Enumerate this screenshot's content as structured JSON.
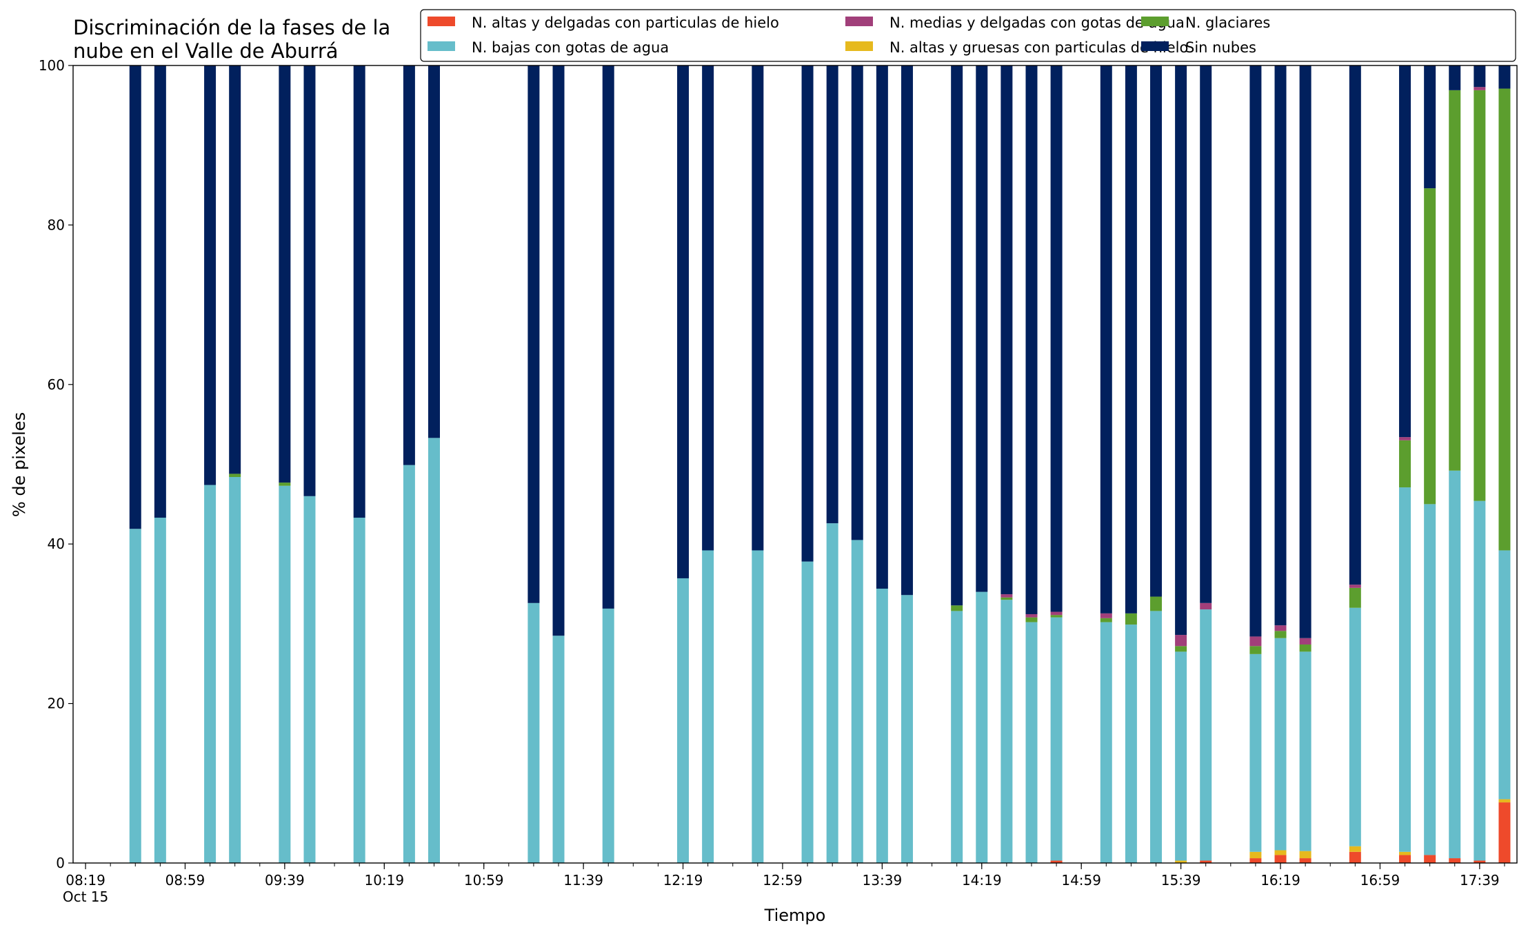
{
  "chart_data": {
    "type": "bar",
    "stacked": true,
    "title_lines": [
      "Discriminación de la fases de la",
      "nube en el Valle de Aburrá"
    ],
    "xlabel": "Tiempo",
    "ylabel": "% de pixeles",
    "ylim": [
      0,
      100
    ],
    "yticks": [
      0,
      20,
      40,
      60,
      80,
      100
    ],
    "grid": false,
    "legend_position": "top-right",
    "xticks_major": [
      {
        "x": "08:19",
        "label": "08:19",
        "sublabel": "Oct 15"
      },
      {
        "x": "08:59",
        "label": "08:59"
      },
      {
        "x": "09:39",
        "label": "09:39"
      },
      {
        "x": "10:19",
        "label": "10:19"
      },
      {
        "x": "10:59",
        "label": "10:59"
      },
      {
        "x": "11:39",
        "label": "11:39"
      },
      {
        "x": "12:19",
        "label": "12:19"
      },
      {
        "x": "12:59",
        "label": "12:59"
      },
      {
        "x": "13:39",
        "label": "13:39"
      },
      {
        "x": "14:19",
        "label": "14:19"
      },
      {
        "x": "14:59",
        "label": "14:59"
      },
      {
        "x": "15:39",
        "label": "15:39"
      },
      {
        "x": "16:19",
        "label": "16:19"
      },
      {
        "x": "16:59",
        "label": "16:59"
      },
      {
        "x": "17:39",
        "label": "17:39"
      }
    ],
    "xrange": [
      "08:14",
      "17:54"
    ],
    "series": [
      {
        "name": "N. altas y delgadas con particulas de hielo",
        "color": "#ee4a2b"
      },
      {
        "name": "N. altas y gruesas con particulas de hielo",
        "color": "#e6b91e"
      },
      {
        "name": "N. bajas con gotas de agua",
        "color": "#66bdca"
      },
      {
        "name": "N. glaciares",
        "color": "#5c9e2e"
      },
      {
        "name": "N. medias y delgadas con gotas de agua",
        "color": "#a13f7a"
      },
      {
        "name": "Sin nubes",
        "color": "#01205d"
      }
    ],
    "legend_order": [
      0,
      2,
      4,
      1,
      3,
      5
    ],
    "bars": [
      {
        "x": "08:39",
        "values": [
          0,
          0,
          41.9,
          0,
          0,
          58.1
        ]
      },
      {
        "x": "08:49",
        "values": [
          0,
          0,
          43.3,
          0,
          0,
          56.7
        ]
      },
      {
        "x": "09:09",
        "values": [
          0,
          0,
          47.4,
          0,
          0,
          52.6
        ]
      },
      {
        "x": "09:19",
        "values": [
          0,
          0,
          48.4,
          0.4,
          0,
          51.2
        ]
      },
      {
        "x": "09:39",
        "values": [
          0,
          0,
          47.3,
          0.4,
          0,
          52.3
        ]
      },
      {
        "x": "09:49",
        "values": [
          0,
          0,
          46.0,
          0,
          0,
          54.0
        ]
      },
      {
        "x": "10:09",
        "values": [
          0,
          0,
          43.3,
          0,
          0,
          56.7
        ]
      },
      {
        "x": "10:29",
        "values": [
          0,
          0,
          49.9,
          0,
          0,
          50.1
        ]
      },
      {
        "x": "10:39",
        "values": [
          0,
          0,
          53.3,
          0,
          0,
          46.7
        ]
      },
      {
        "x": "11:19",
        "values": [
          0,
          0,
          32.6,
          0,
          0,
          67.4
        ]
      },
      {
        "x": "11:29",
        "values": [
          0,
          0,
          28.5,
          0,
          0,
          71.5
        ]
      },
      {
        "x": "11:49",
        "values": [
          0,
          0,
          31.9,
          0,
          0,
          68.1
        ]
      },
      {
        "x": "12:19",
        "values": [
          0,
          0,
          35.7,
          0,
          0,
          64.3
        ]
      },
      {
        "x": "12:29",
        "values": [
          0,
          0,
          39.2,
          0,
          0,
          60.8
        ]
      },
      {
        "x": "12:49",
        "values": [
          0,
          0,
          39.2,
          0,
          0,
          60.8
        ]
      },
      {
        "x": "13:09",
        "values": [
          0,
          0,
          37.8,
          0,
          0,
          62.2
        ]
      },
      {
        "x": "13:19",
        "values": [
          0,
          0,
          42.6,
          0,
          0,
          57.4
        ]
      },
      {
        "x": "13:29",
        "values": [
          0,
          0,
          40.5,
          0,
          0,
          59.5
        ]
      },
      {
        "x": "13:39",
        "values": [
          0,
          0,
          34.4,
          0,
          0,
          65.6
        ]
      },
      {
        "x": "13:49",
        "values": [
          0,
          0,
          33.6,
          0,
          0,
          66.4
        ]
      },
      {
        "x": "14:09",
        "values": [
          0,
          0,
          31.6,
          0.7,
          0,
          67.7
        ]
      },
      {
        "x": "14:19",
        "values": [
          0,
          0,
          34.0,
          0,
          0,
          66.0
        ]
      },
      {
        "x": "14:29",
        "values": [
          0,
          0,
          33.0,
          0.3,
          0.4,
          66.3
        ]
      },
      {
        "x": "14:39",
        "values": [
          0,
          0,
          30.2,
          0.6,
          0.4,
          68.8
        ]
      },
      {
        "x": "14:49",
        "values": [
          0.3,
          0,
          30.5,
          0.3,
          0.4,
          68.5
        ]
      },
      {
        "x": "15:09",
        "values": [
          0,
          0,
          30.2,
          0.5,
          0.6,
          68.7
        ]
      },
      {
        "x": "15:19",
        "values": [
          0,
          0,
          29.9,
          1.4,
          0,
          68.7
        ]
      },
      {
        "x": "15:29",
        "values": [
          0,
          0,
          31.6,
          1.8,
          0,
          66.6
        ]
      },
      {
        "x": "15:39",
        "values": [
          0,
          0.3,
          26.2,
          0.7,
          1.4,
          71.4
        ]
      },
      {
        "x": "15:49",
        "values": [
          0.3,
          0,
          31.5,
          0,
          0.8,
          67.4
        ]
      },
      {
        "x": "16:09",
        "values": [
          0.6,
          0.8,
          24.8,
          1.0,
          1.2,
          71.6
        ]
      },
      {
        "x": "16:19",
        "values": [
          1.0,
          0.6,
          26.6,
          0.9,
          0.7,
          70.2
        ]
      },
      {
        "x": "16:29",
        "values": [
          0.6,
          0.9,
          25.0,
          0.9,
          0.8,
          71.8
        ]
      },
      {
        "x": "16:49",
        "values": [
          1.4,
          0.7,
          29.9,
          2.5,
          0.4,
          65.1
        ]
      },
      {
        "x": "17:09",
        "values": [
          1.0,
          0.4,
          45.7,
          5.9,
          0.4,
          46.6
        ]
      },
      {
        "x": "17:19",
        "values": [
          1.0,
          0,
          44.0,
          39.6,
          0,
          15.4
        ]
      },
      {
        "x": "17:29",
        "values": [
          0.6,
          0,
          48.6,
          47.7,
          0,
          3.1
        ]
      },
      {
        "x": "17:39",
        "values": [
          0.3,
          0,
          45.1,
          51.5,
          0.4,
          2.7
        ]
      },
      {
        "x": "17:49",
        "values": [
          7.6,
          0.4,
          31.2,
          57.9,
          0,
          2.9
        ]
      }
    ]
  }
}
